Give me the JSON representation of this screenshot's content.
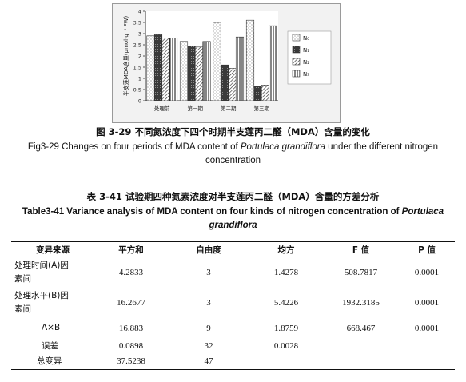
{
  "chart_data": {
    "type": "bar",
    "title": "",
    "xlabel": "",
    "ylabel": "半支莲MDA含量(μmol·g⁻¹ FW)",
    "ylim": [
      0,
      4
    ],
    "yticks": [
      "0",
      "0.5",
      "1",
      "1.5",
      "2",
      "2.5",
      "3",
      "3.5",
      "4"
    ],
    "categories": [
      "处理前",
      "第一期",
      "第二期",
      "第三期"
    ],
    "series": [
      {
        "name": "N₀",
        "values": [
          2.9,
          2.65,
          3.5,
          3.6
        ],
        "pattern": "dots"
      },
      {
        "name": "N₁",
        "values": [
          2.95,
          2.45,
          1.6,
          0.65
        ],
        "pattern": "dark"
      },
      {
        "name": "N₂",
        "values": [
          2.8,
          2.4,
          1.45,
          0.7
        ],
        "pattern": "hatch"
      },
      {
        "name": "N₃",
        "values": [
          2.8,
          2.65,
          2.85,
          3.35
        ],
        "pattern": "vlines"
      }
    ],
    "legend_position": "right",
    "grid": false
  },
  "figure": {
    "caption_cn": "图 3-29 不同氮浓度下四个时期半支莲丙二醛（MDA）含量的变化",
    "caption_en_pre": "Fig3-29 Changes on four periods of MDA content of ",
    "caption_en_species": "Portulaca grandiflora",
    "caption_en_post": " under the different nitrogen",
    "caption_en_line2": "concentration"
  },
  "table": {
    "caption_cn": "表 3-41 试验期四种氮素浓度对半支莲丙二醛（MDA）含量的方差分析",
    "caption_en_pre": "Table3-41 Variance analysis of MDA content on four kinds of nitrogen concentration of ",
    "caption_en_species1": "Portulaca",
    "caption_en_species2": "grandiflora",
    "headers": [
      "变异来源",
      "平方和",
      "自由度",
      "均方",
      "F 值",
      "P 值"
    ],
    "rows": [
      {
        "source_line1": "处理时间(A)因",
        "source_line2": "素间",
        "ss": "4.2833",
        "df": "3",
        "ms": "1.4278",
        "f": "508.7817",
        "p": "0.0001"
      },
      {
        "source_line1": "处理水平(B)因",
        "source_line2": "素间",
        "ss": "16.2677",
        "df": "3",
        "ms": "5.4226",
        "f": "1932.3185",
        "p": "0.0001"
      },
      {
        "source_line1": "A×B",
        "source_line2": "",
        "ss": "16.883",
        "df": "9",
        "ms": "1.8759",
        "f": "668.467",
        "p": "0.0001"
      },
      {
        "source_line1": "误差",
        "source_line2": "",
        "ss": "0.0898",
        "df": "32",
        "ms": "0.0028",
        "f": "",
        "p": ""
      },
      {
        "source_line1": "总变异",
        "source_line2": "",
        "ss": "37.5238",
        "df": "47",
        "ms": "",
        "f": "",
        "p": ""
      }
    ]
  }
}
